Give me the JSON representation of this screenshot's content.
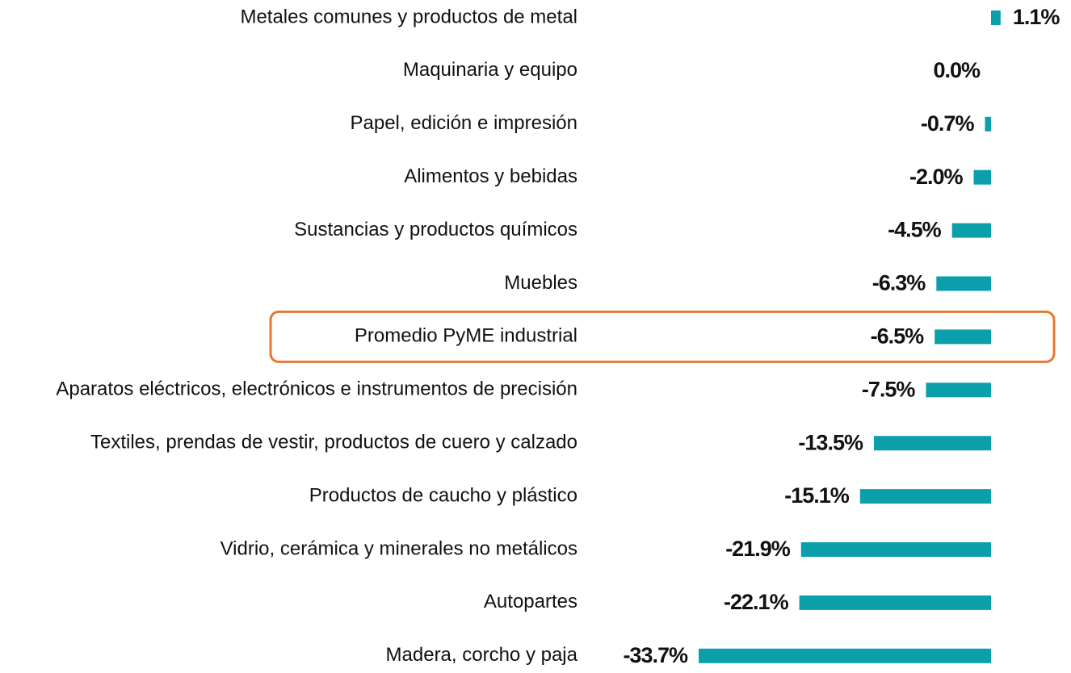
{
  "chart_data": {
    "type": "bar",
    "orientation": "horizontal",
    "categories": [
      "Metales comunes y productos de metal",
      "Maquinaria y equipo",
      "Papel, edición e impresión",
      "Alimentos y bebidas",
      "Sustancias y productos químicos",
      "Muebles",
      "Promedio PyME industrial",
      "Aparatos eléctricos, electrónicos e instrumentos de precisión",
      "Textiles, prendas de vestir, productos de cuero y calzado",
      "Productos de caucho y plástico",
      "Vidrio, cerámica y minerales no metálicos",
      "Autopartes",
      "Madera, corcho y paja"
    ],
    "values": [
      1.1,
      0.0,
      -0.7,
      -2.0,
      -4.5,
      -6.3,
      -6.5,
      -7.5,
      -13.5,
      -15.1,
      -21.9,
      -22.1,
      -33.7
    ],
    "value_labels": [
      "1.1%",
      "0.0%",
      "-0.7%",
      "-2.0%",
      "-4.5%",
      "-6.3%",
      "-6.5%",
      "-7.5%",
      "-13.5%",
      "-15.1%",
      "-21.9%",
      "-22.1%",
      "-33.7%"
    ],
    "color": "#0a9fab",
    "highlight": {
      "category": 6,
      "color": "#e8772e"
    }
  }
}
